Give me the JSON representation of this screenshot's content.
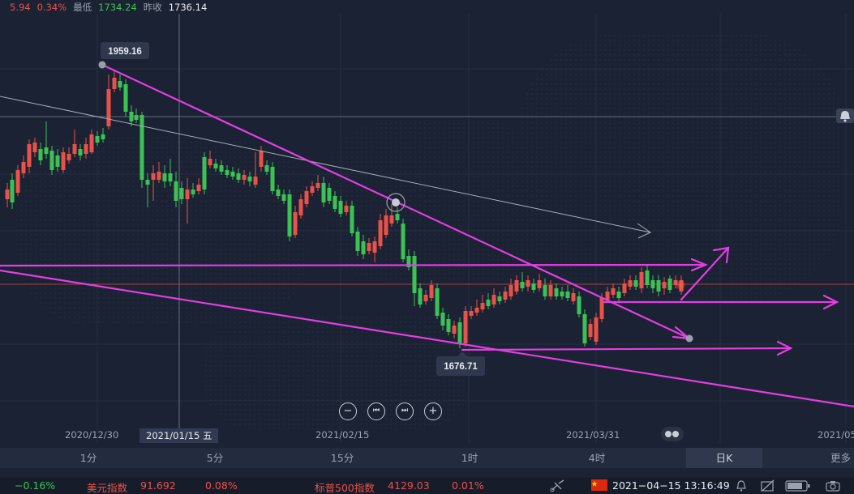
{
  "quote": {
    "change": "5.94",
    "change_pct": "0.34%",
    "high_label": "最低",
    "high_value": "1734.24",
    "prev_label": "昨收",
    "prev_value": "1736.14"
  },
  "chart_data": {
    "type": "candlestick",
    "annotations": {
      "high": "1959.16",
      "low": "1676.71"
    },
    "x_labels": [
      "2020/12/30",
      "2021/01/15 五",
      "2021/02/15",
      "2021/03/31",
      "2021/05"
    ]
  },
  "controls": {
    "zoom_out": "−",
    "prev": "⏮",
    "next": "⏭",
    "zoom_in": "+"
  },
  "tabs": [
    "1分",
    "5分",
    "15分",
    "1时",
    "4时",
    "日K",
    "更多"
  ],
  "ticker": {
    "first_change": "−0.16%",
    "dxy_name": "美元指数",
    "dxy_value": "91.692",
    "dxy_change": "0.08%",
    "spx_name": "标普500指数",
    "spx_value": "4129.03",
    "spx_change": "0.01%",
    "datetime": "2021−04−15 13:16:49"
  },
  "colors": {
    "up": "#e8524a",
    "down": "#3cc254",
    "trend": "#e33ee3",
    "bg": "#1b2233"
  }
}
